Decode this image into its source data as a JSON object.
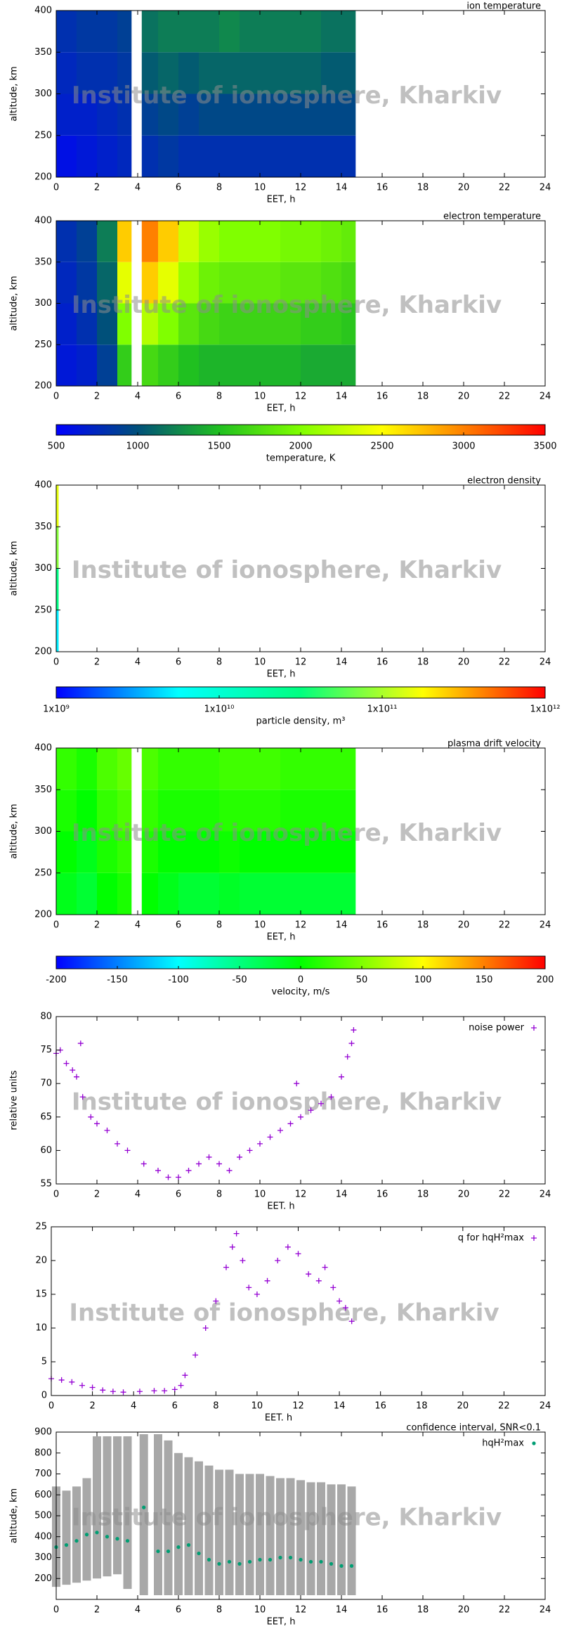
{
  "watermark": "Institute of ionosphere, Kharkiv",
  "chart_data": [
    {
      "type": "heatmap",
      "title": "ion temperature",
      "xlabel": "EET, h",
      "ylabel": "altitude, km",
      "xlim": [
        0,
        24
      ],
      "xticks": [
        0,
        2,
        4,
        6,
        8,
        10,
        12,
        14,
        16,
        18,
        20,
        22,
        24
      ],
      "ylim": [
        200,
        400
      ],
      "yticks": [
        200,
        250,
        300,
        350,
        400
      ],
      "x_edges": [
        0,
        1,
        2,
        3,
        3.7,
        4.2,
        5,
        6,
        7,
        8,
        9,
        10,
        11,
        12,
        13,
        14,
        14.7
      ],
      "y_edges": [
        200,
        250,
        300,
        350,
        400
      ],
      "z": [
        [
          600,
          650,
          700,
          750,
          null,
          800,
          850,
          800,
          800,
          800,
          800,
          800,
          800,
          800,
          800,
          800
        ],
        [
          700,
          700,
          750,
          800,
          null,
          900,
          950,
          900,
          950,
          950,
          950,
          950,
          950,
          950,
          950,
          950
        ],
        [
          750,
          800,
          800,
          850,
          null,
          1050,
          1100,
          1050,
          1100,
          1100,
          1100,
          1100,
          1100,
          1100,
          1050,
          1050
        ],
        [
          800,
          850,
          850,
          900,
          null,
          1150,
          1200,
          1200,
          1200,
          1250,
          1200,
          1200,
          1200,
          1200,
          1150,
          1150
        ]
      ]
    },
    {
      "type": "heatmap",
      "title": "electron temperature",
      "xlabel": "EET, h",
      "ylabel": "altitude, km",
      "xlim": [
        0,
        24
      ],
      "xticks": [
        0,
        2,
        4,
        6,
        8,
        10,
        12,
        14,
        16,
        18,
        20,
        22,
        24
      ],
      "ylim": [
        200,
        400
      ],
      "yticks": [
        200,
        250,
        300,
        350,
        400
      ],
      "x_edges": [
        0,
        1,
        2,
        3,
        3.7,
        4.2,
        5,
        6,
        7,
        8,
        9,
        10,
        11,
        12,
        13,
        14,
        14.7
      ],
      "y_edges": [
        200,
        250,
        300,
        350,
        400
      ],
      "z": [
        [
          650,
          700,
          900,
          1600,
          null,
          1700,
          1600,
          1500,
          1450,
          1450,
          1450,
          1450,
          1450,
          1400,
          1400,
          1400
        ],
        [
          700,
          800,
          1000,
          2000,
          null,
          2200,
          2000,
          1800,
          1700,
          1650,
          1650,
          1650,
          1650,
          1600,
          1600,
          1550
        ],
        [
          750,
          850,
          1100,
          2400,
          null,
          2700,
          2400,
          2100,
          1900,
          1850,
          1850,
          1850,
          1800,
          1800,
          1750,
          1700
        ],
        [
          800,
          900,
          1200,
          2700,
          null,
          3000,
          2700,
          2300,
          2100,
          2000,
          2000,
          2000,
          1950,
          1950,
          1900,
          1850
        ]
      ]
    },
    {
      "type": "colorbar",
      "label": "temperature, K",
      "xlim": [
        500,
        3500
      ],
      "xticks": [
        500,
        1000,
        1500,
        2000,
        2500,
        3000,
        3500
      ],
      "colors": [
        "#0000ff",
        "#00507a",
        "#20c020",
        "#80ff00",
        "#ffff00",
        "#ff8000",
        "#ff0000"
      ]
    },
    {
      "type": "heatmap",
      "title": "electron density",
      "xlabel": "EET, h",
      "ylabel": "altitude, km",
      "xlim": [
        0,
        24
      ],
      "xticks": [
        0,
        2,
        4,
        6,
        8,
        10,
        12,
        14,
        16,
        18,
        20,
        22,
        24
      ],
      "ylim": [
        200,
        400
      ],
      "yticks": [
        200,
        250,
        300,
        350,
        400
      ],
      "x_edges": [
        0,
        0.12
      ],
      "y_edges": [
        200,
        250,
        300,
        350,
        400
      ],
      "z": [
        [
          5000000000
        ],
        [
          30000000000
        ],
        [
          80000000000
        ],
        [
          150000000000
        ]
      ]
    },
    {
      "type": "colorbar",
      "label": "particle density, m³",
      "log": true,
      "xlim": [
        1000000000,
        1000000000000
      ],
      "xticks": [
        {
          "value": 1000000000,
          "label": "1x10⁹"
        },
        {
          "value": 10000000000,
          "label": "1x10¹⁰"
        },
        {
          "value": 100000000000,
          "label": "1x10¹¹"
        },
        {
          "value": 1000000000000,
          "label": "1x10¹²"
        }
      ],
      "colors": [
        "#0000ff",
        "#00ffff",
        "#00ff80",
        "#ffff00",
        "#ff0000"
      ]
    },
    {
      "type": "heatmap",
      "title": "plasma drift velocity",
      "xlabel": "EET, h",
      "ylabel": "altitude, km",
      "xlim": [
        0,
        24
      ],
      "xticks": [
        0,
        2,
        4,
        6,
        8,
        10,
        12,
        14,
        16,
        18,
        20,
        22,
        24
      ],
      "ylim": [
        200,
        400
      ],
      "yticks": [
        200,
        250,
        300,
        350,
        400
      ],
      "x_edges": [
        0,
        1,
        2,
        3,
        3.7,
        4.2,
        5,
        6,
        7,
        8,
        9,
        10,
        11,
        12,
        13,
        14,
        14.7
      ],
      "y_edges": [
        200,
        250,
        300,
        350,
        400
      ],
      "z": [
        [
          -10,
          -20,
          0,
          10,
          null,
          0,
          -10,
          -20,
          -20,
          -15,
          -20,
          -20,
          -20,
          -20,
          -20,
          -20
        ],
        [
          0,
          -10,
          10,
          20,
          null,
          10,
          0,
          0,
          0,
          5,
          0,
          0,
          0,
          0,
          0,
          0
        ],
        [
          10,
          0,
          20,
          30,
          null,
          20,
          10,
          10,
          10,
          15,
          15,
          15,
          10,
          10,
          10,
          10
        ],
        [
          20,
          10,
          30,
          40,
          null,
          30,
          20,
          20,
          20,
          25,
          25,
          25,
          20,
          20,
          20,
          20
        ]
      ]
    },
    {
      "type": "colorbar",
      "label": "velocity, m/s",
      "xlim": [
        -200,
        200
      ],
      "xticks": [
        -200,
        -150,
        -100,
        -50,
        0,
        50,
        100,
        150,
        200
      ],
      "colors": [
        "#0000ff",
        "#00ffff",
        "#00ff00",
        "#ffff00",
        "#ff0000"
      ]
    },
    {
      "type": "scatter",
      "xlabel": "EET. h",
      "ylabel": "relative units",
      "legend": "top right",
      "marker": "plus",
      "xlim": [
        0,
        24
      ],
      "xticks": [
        0,
        2,
        4,
        6,
        8,
        10,
        12,
        14,
        16,
        18,
        20,
        22,
        24
      ],
      "ylim": [
        55,
        80
      ],
      "yticks": [
        55,
        60,
        65,
        70,
        75,
        80
      ],
      "x": [
        0,
        0.2,
        0.5,
        0.8,
        1,
        1.2,
        1.3,
        1.7,
        2,
        2.5,
        3,
        3.5,
        4.3,
        5,
        5.5,
        6,
        6.5,
        7,
        7.5,
        8,
        8.5,
        9,
        9.5,
        10,
        10.5,
        11,
        11.5,
        11.8,
        12,
        12.5,
        13,
        13.5,
        14,
        14.3,
        14.5,
        14.6
      ],
      "series": [
        {
          "name": "noise power",
          "color": "#9400d3",
          "values": [
            74.5,
            75,
            73,
            72,
            71,
            76,
            68,
            65,
            64,
            63,
            61,
            60,
            58,
            57,
            56,
            56,
            57,
            58,
            59,
            58,
            57,
            59,
            60,
            61,
            62,
            63,
            64,
            70,
            65,
            66,
            67,
            68,
            71,
            74,
            76,
            78
          ]
        }
      ]
    },
    {
      "type": "scatter",
      "xlabel": "EET. h",
      "legend": "top right",
      "marker": "plus",
      "xlim": [
        0,
        24
      ],
      "xticks": [
        0,
        2,
        4,
        6,
        8,
        10,
        12,
        14,
        16,
        18,
        20,
        22,
        24
      ],
      "ylim": [
        0,
        25
      ],
      "yticks": [
        0,
        5,
        10,
        15,
        20,
        25
      ],
      "x": [
        0,
        0.5,
        1,
        1.5,
        2,
        2.5,
        3,
        3.5,
        4.3,
        5,
        5.5,
        6,
        6.3,
        6.5,
        7,
        7.5,
        8,
        8.5,
        8.8,
        9,
        9.3,
        9.6,
        10,
        10.5,
        11,
        11.5,
        12,
        12.5,
        13,
        13.3,
        13.7,
        14,
        14.3,
        14.6
      ],
      "series": [
        {
          "name": "q for hqH²max",
          "color": "#9400d3",
          "values": [
            2.5,
            2.3,
            2,
            1.5,
            1.2,
            0.8,
            0.6,
            0.5,
            0.6,
            0.7,
            0.7,
            0.9,
            1.5,
            3,
            6,
            10,
            14,
            19,
            22,
            24,
            20,
            16,
            15,
            17,
            20,
            22,
            21,
            18,
            17,
            19,
            16,
            14,
            13,
            11
          ]
        }
      ]
    },
    {
      "type": "scatter",
      "title": "confidence interval, SNR<0.1",
      "xlabel": "EET, h",
      "ylabel": "altitude, km",
      "legend": "top right",
      "marker": "dot",
      "xlim": [
        0,
        24
      ],
      "xticks": [
        0,
        2,
        4,
        6,
        8,
        10,
        12,
        14,
        16,
        18,
        20,
        22,
        24
      ],
      "ylim": [
        100,
        900
      ],
      "yticks": [
        200,
        300,
        400,
        500,
        600,
        700,
        800,
        900
      ],
      "x": [
        0,
        0.5,
        1,
        1.5,
        2,
        2.5,
        3,
        3.5,
        4.3,
        5,
        5.5,
        6,
        6.5,
        7,
        7.5,
        8,
        8.5,
        9,
        9.5,
        10,
        10.5,
        11,
        11.5,
        12,
        12.5,
        13,
        13.5,
        14,
        14.5
      ],
      "ci_color": "#a8a8a8",
      "ci_low": [
        160,
        170,
        180,
        190,
        200,
        210,
        220,
        150,
        120,
        120,
        120,
        120,
        120,
        120,
        120,
        120,
        120,
        120,
        120,
        120,
        120,
        120,
        120,
        120,
        120,
        120,
        120,
        120,
        120
      ],
      "ci_high": [
        640,
        620,
        640,
        680,
        880,
        880,
        880,
        880,
        890,
        890,
        860,
        800,
        780,
        760,
        740,
        720,
        720,
        700,
        700,
        700,
        690,
        680,
        680,
        670,
        660,
        660,
        650,
        650,
        640
      ],
      "series": [
        {
          "name": "hqH²max",
          "color": "#009e73",
          "values": [
            350,
            360,
            380,
            410,
            420,
            400,
            390,
            380,
            540,
            330,
            330,
            350,
            360,
            320,
            290,
            270,
            280,
            270,
            280,
            290,
            290,
            300,
            300,
            290,
            280,
            280,
            270,
            260,
            260
          ]
        }
      ]
    }
  ]
}
